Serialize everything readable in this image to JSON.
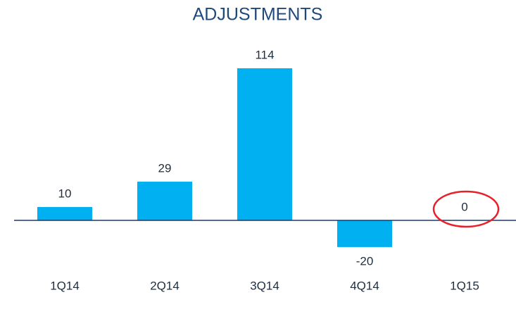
{
  "chart_data": {
    "type": "bar",
    "title": "ADJUSTMENTS",
    "categories": [
      "1Q14",
      "2Q14",
      "3Q14",
      "4Q14",
      "1Q15"
    ],
    "values": [
      10,
      29,
      114,
      -20,
      0
    ],
    "color": "#00b0f0"
  }
}
